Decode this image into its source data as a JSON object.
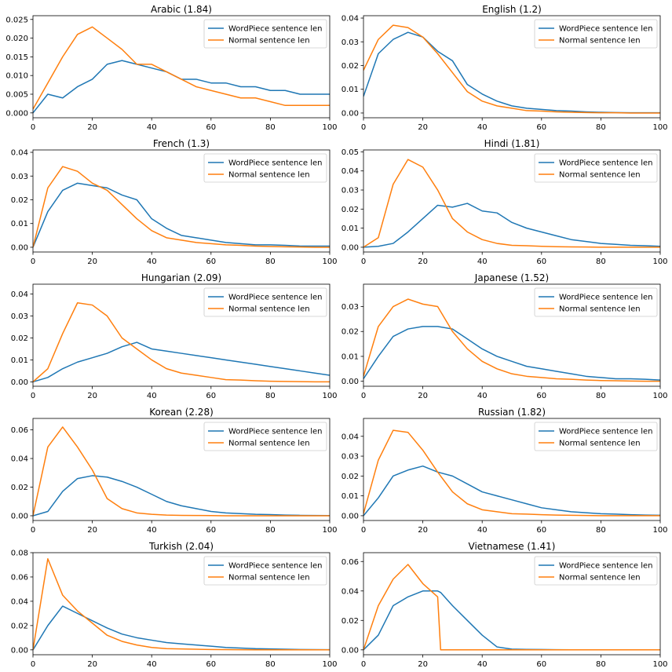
{
  "figure": {
    "legend_labels": [
      "WordPiece sentence len",
      "Normal sentence len"
    ],
    "colors": {
      "wordpiece": "#1f77b4",
      "normal": "#ff7f0e"
    }
  },
  "chart_data": [
    {
      "type": "line",
      "title": "Arabic (1.84)",
      "xlim": [
        0,
        100
      ],
      "ylim": [
        -0.0013,
        0.026
      ],
      "xticks": [
        0,
        20,
        40,
        60,
        80,
        100
      ],
      "yticks": [
        0.0,
        0.005,
        0.01,
        0.015,
        0.02,
        0.025
      ],
      "ytick_labels": [
        "0.000",
        "0.005",
        "0.010",
        "0.015",
        "0.020",
        "0.025"
      ],
      "legend": "top-right",
      "x": [
        0,
        5,
        10,
        15,
        20,
        25,
        30,
        35,
        40,
        45,
        50,
        55,
        60,
        65,
        70,
        75,
        80,
        85,
        90,
        95,
        100
      ],
      "series": [
        {
          "name": "WordPiece sentence len",
          "values": [
            0.0,
            0.005,
            0.004,
            0.007,
            0.009,
            0.013,
            0.014,
            0.013,
            0.012,
            0.011,
            0.009,
            0.009,
            0.008,
            0.008,
            0.007,
            0.007,
            0.006,
            0.006,
            0.005,
            0.005,
            0.005
          ]
        },
        {
          "name": "Normal sentence len",
          "values": [
            0.001,
            0.008,
            0.015,
            0.021,
            0.023,
            0.02,
            0.017,
            0.013,
            0.013,
            0.011,
            0.009,
            0.007,
            0.006,
            0.005,
            0.004,
            0.004,
            0.003,
            0.002,
            0.002,
            0.002,
            0.002
          ]
        }
      ]
    },
    {
      "type": "line",
      "title": "English (1.2)",
      "xlim": [
        0,
        100
      ],
      "ylim": [
        -0.002,
        0.041
      ],
      "xticks": [
        0,
        20,
        40,
        60,
        80,
        100
      ],
      "yticks": [
        0.0,
        0.01,
        0.02,
        0.03,
        0.04
      ],
      "ytick_labels": [
        "0.00",
        "0.01",
        "0.02",
        "0.03",
        "0.04"
      ],
      "legend": "top-right",
      "x": [
        0,
        5,
        10,
        15,
        20,
        25,
        30,
        35,
        40,
        45,
        50,
        55,
        60,
        65,
        70,
        75,
        80,
        85,
        90,
        95,
        100
      ],
      "series": [
        {
          "name": "WordPiece sentence len",
          "values": [
            0.007,
            0.025,
            0.031,
            0.034,
            0.032,
            0.026,
            0.022,
            0.012,
            0.008,
            0.005,
            0.003,
            0.002,
            0.0015,
            0.001,
            0.0008,
            0.0005,
            0.0003,
            0.0002,
            0.0001,
            0.0001,
            0.0001
          ]
        },
        {
          "name": "Normal sentence len",
          "values": [
            0.018,
            0.031,
            0.037,
            0.036,
            0.032,
            0.025,
            0.017,
            0.009,
            0.005,
            0.003,
            0.002,
            0.001,
            0.0008,
            0.0005,
            0.0003,
            0.0002,
            0.0001,
            0.0001,
            0.0,
            0.0,
            0.0
          ]
        }
      ]
    },
    {
      "type": "line",
      "title": "French (1.3)",
      "xlim": [
        0,
        100
      ],
      "ylim": [
        -0.002,
        0.041
      ],
      "xticks": [
        0,
        20,
        40,
        60,
        80,
        100
      ],
      "yticks": [
        0.0,
        0.01,
        0.02,
        0.03,
        0.04
      ],
      "ytick_labels": [
        "0.00",
        "0.01",
        "0.02",
        "0.03",
        "0.04"
      ],
      "legend": "top-right",
      "x": [
        0,
        5,
        10,
        15,
        20,
        25,
        30,
        35,
        40,
        45,
        50,
        55,
        60,
        65,
        70,
        75,
        80,
        85,
        90,
        95,
        100
      ],
      "series": [
        {
          "name": "WordPiece sentence len",
          "values": [
            0.0,
            0.015,
            0.024,
            0.027,
            0.026,
            0.025,
            0.022,
            0.02,
            0.012,
            0.008,
            0.005,
            0.004,
            0.003,
            0.002,
            0.0015,
            0.001,
            0.001,
            0.0008,
            0.0005,
            0.0005,
            0.0005
          ]
        },
        {
          "name": "Normal sentence len",
          "values": [
            0.0,
            0.025,
            0.034,
            0.032,
            0.027,
            0.024,
            0.018,
            0.012,
            0.007,
            0.004,
            0.003,
            0.002,
            0.0015,
            0.001,
            0.0008,
            0.0005,
            0.0003,
            0.0002,
            0.0001,
            0.0,
            0.0
          ]
        }
      ]
    },
    {
      "type": "line",
      "title": "Hindi (1.81)",
      "xlim": [
        0,
        100
      ],
      "ylim": [
        -0.0025,
        0.051
      ],
      "xticks": [
        0,
        20,
        40,
        60,
        80,
        100
      ],
      "yticks": [
        0.0,
        0.01,
        0.02,
        0.03,
        0.04,
        0.05
      ],
      "ytick_labels": [
        "0.00",
        "0.01",
        "0.02",
        "0.03",
        "0.04",
        "0.05"
      ],
      "legend": "top-right",
      "x": [
        0,
        5,
        10,
        15,
        20,
        25,
        30,
        35,
        40,
        45,
        50,
        55,
        60,
        65,
        70,
        75,
        80,
        85,
        90,
        95,
        100
      ],
      "series": [
        {
          "name": "WordPiece sentence len",
          "values": [
            0.0,
            0.0005,
            0.002,
            0.008,
            0.015,
            0.022,
            0.021,
            0.023,
            0.019,
            0.018,
            0.013,
            0.01,
            0.008,
            0.006,
            0.004,
            0.003,
            0.002,
            0.0015,
            0.001,
            0.0008,
            0.0005
          ]
        },
        {
          "name": "Normal sentence len",
          "values": [
            0.0,
            0.005,
            0.033,
            0.046,
            0.042,
            0.03,
            0.015,
            0.008,
            0.004,
            0.002,
            0.001,
            0.0008,
            0.0005,
            0.0003,
            0.0002,
            0.0001,
            0.0,
            0.0,
            0.0,
            0.0,
            0.0
          ]
        }
      ]
    },
    {
      "type": "line",
      "title": "Hungarian (2.09)",
      "xlim": [
        0,
        100
      ],
      "ylim": [
        -0.002,
        0.0445
      ],
      "xticks": [
        0,
        20,
        40,
        60,
        80,
        100
      ],
      "yticks": [
        0.0,
        0.01,
        0.02,
        0.03,
        0.04
      ],
      "ytick_labels": [
        "0.00",
        "0.01",
        "0.02",
        "0.03",
        "0.04"
      ],
      "legend": "top-right",
      "x": [
        0,
        5,
        10,
        15,
        20,
        25,
        30,
        35,
        40,
        45,
        50,
        55,
        60,
        65,
        70,
        75,
        80,
        85,
        90,
        95,
        100
      ],
      "series": [
        {
          "name": "WordPiece sentence len",
          "values": [
            0.0,
            0.002,
            0.006,
            0.009,
            0.011,
            0.013,
            0.016,
            0.018,
            0.015,
            0.014,
            0.013,
            0.012,
            0.011,
            0.01,
            0.009,
            0.008,
            0.007,
            0.006,
            0.005,
            0.004,
            0.003
          ]
        },
        {
          "name": "Normal sentence len",
          "values": [
            0.0,
            0.006,
            0.022,
            0.036,
            0.035,
            0.03,
            0.02,
            0.015,
            0.01,
            0.006,
            0.004,
            0.003,
            0.002,
            0.001,
            0.0008,
            0.0005,
            0.0003,
            0.0002,
            0.0001,
            0.0,
            0.0
          ]
        }
      ]
    },
    {
      "type": "line",
      "title": "Japanese (1.52)",
      "xlim": [
        0,
        100
      ],
      "ylim": [
        -0.002,
        0.039
      ],
      "xticks": [
        0,
        20,
        40,
        60,
        80,
        100
      ],
      "yticks": [
        0.0,
        0.01,
        0.02,
        0.03
      ],
      "ytick_labels": [
        "0.00",
        "0.01",
        "0.02",
        "0.03"
      ],
      "legend": "top-right",
      "x": [
        0,
        5,
        10,
        15,
        20,
        25,
        30,
        35,
        40,
        45,
        50,
        55,
        60,
        65,
        70,
        75,
        80,
        85,
        90,
        95,
        100
      ],
      "series": [
        {
          "name": "WordPiece sentence len",
          "values": [
            0.001,
            0.01,
            0.018,
            0.021,
            0.022,
            0.022,
            0.021,
            0.017,
            0.013,
            0.01,
            0.008,
            0.006,
            0.005,
            0.004,
            0.003,
            0.002,
            0.0015,
            0.001,
            0.001,
            0.0008,
            0.0005
          ]
        },
        {
          "name": "Normal sentence len",
          "values": [
            0.002,
            0.022,
            0.03,
            0.033,
            0.031,
            0.03,
            0.02,
            0.013,
            0.008,
            0.005,
            0.003,
            0.002,
            0.0015,
            0.001,
            0.0008,
            0.0005,
            0.0003,
            0.0002,
            0.0001,
            0.0,
            0.0
          ]
        }
      ]
    },
    {
      "type": "line",
      "title": "Korean (2.28)",
      "xlim": [
        0,
        100
      ],
      "ylim": [
        -0.0033,
        0.068
      ],
      "xticks": [
        0,
        20,
        40,
        60,
        80,
        100
      ],
      "yticks": [
        0.0,
        0.02,
        0.04,
        0.06
      ],
      "ytick_labels": [
        "0.00",
        "0.02",
        "0.04",
        "0.06"
      ],
      "legend": "top-right",
      "x": [
        0,
        5,
        10,
        15,
        20,
        25,
        30,
        35,
        40,
        45,
        50,
        55,
        60,
        65,
        70,
        75,
        80,
        85,
        90,
        95,
        100
      ],
      "series": [
        {
          "name": "WordPiece sentence len",
          "values": [
            0.0,
            0.003,
            0.017,
            0.026,
            0.028,
            0.027,
            0.024,
            0.02,
            0.015,
            0.01,
            0.007,
            0.005,
            0.003,
            0.002,
            0.0015,
            0.001,
            0.0008,
            0.0005,
            0.0003,
            0.0002,
            0.0001
          ]
        },
        {
          "name": "Normal sentence len",
          "values": [
            0.0,
            0.048,
            0.062,
            0.048,
            0.032,
            0.012,
            0.005,
            0.002,
            0.001,
            0.0005,
            0.0003,
            0.0002,
            0.0001,
            0.0,
            0.0,
            0.0,
            0.0,
            0.0,
            0.0,
            0.0,
            0.0
          ]
        }
      ]
    },
    {
      "type": "line",
      "title": "Russian (1.82)",
      "xlim": [
        0,
        100
      ],
      "ylim": [
        -0.0024,
        0.049
      ],
      "xticks": [
        0,
        20,
        40,
        60,
        80,
        100
      ],
      "yticks": [
        0.0,
        0.01,
        0.02,
        0.03,
        0.04
      ],
      "ytick_labels": [
        "0.00",
        "0.01",
        "0.02",
        "0.03",
        "0.04"
      ],
      "legend": "top-right",
      "x": [
        0,
        5,
        10,
        15,
        20,
        25,
        30,
        35,
        40,
        45,
        50,
        55,
        60,
        65,
        70,
        75,
        80,
        85,
        90,
        95,
        100
      ],
      "series": [
        {
          "name": "WordPiece sentence len",
          "values": [
            0.0,
            0.009,
            0.02,
            0.023,
            0.025,
            0.022,
            0.02,
            0.016,
            0.012,
            0.01,
            0.008,
            0.006,
            0.004,
            0.003,
            0.002,
            0.0015,
            0.001,
            0.0008,
            0.0005,
            0.0003,
            0.0002
          ]
        },
        {
          "name": "Normal sentence len",
          "values": [
            0.001,
            0.028,
            0.043,
            0.042,
            0.033,
            0.022,
            0.012,
            0.006,
            0.003,
            0.002,
            0.001,
            0.0008,
            0.0005,
            0.0003,
            0.0002,
            0.0001,
            0.0,
            0.0,
            0.0,
            0.0,
            0.0
          ]
        }
      ]
    },
    {
      "type": "line",
      "title": "Turkish (2.04)",
      "xlim": [
        0,
        100
      ],
      "ylim": [
        -0.004,
        0.08
      ],
      "xticks": [
        0,
        20,
        40,
        60,
        80,
        100
      ],
      "yticks": [
        0.0,
        0.02,
        0.04,
        0.06,
        0.08
      ],
      "ytick_labels": [
        "0.00",
        "0.02",
        "0.04",
        "0.06",
        "0.08"
      ],
      "legend": "top-right",
      "x": [
        0,
        5,
        10,
        15,
        20,
        25,
        30,
        35,
        40,
        45,
        50,
        55,
        60,
        65,
        70,
        75,
        80,
        85,
        90,
        95,
        100
      ],
      "series": [
        {
          "name": "WordPiece sentence len",
          "values": [
            0.0,
            0.02,
            0.036,
            0.03,
            0.024,
            0.018,
            0.013,
            0.01,
            0.008,
            0.006,
            0.005,
            0.004,
            0.003,
            0.002,
            0.0015,
            0.001,
            0.0008,
            0.0005,
            0.0003,
            0.0002,
            0.0001
          ]
        },
        {
          "name": "Normal sentence len",
          "values": [
            0.0,
            0.075,
            0.045,
            0.032,
            0.022,
            0.012,
            0.007,
            0.004,
            0.002,
            0.001,
            0.0008,
            0.0005,
            0.0003,
            0.0002,
            0.0001,
            0.0,
            0.0,
            0.0,
            0.0,
            0.0,
            0.0
          ]
        }
      ]
    },
    {
      "type": "line",
      "title": "Vietnamese (1.41)",
      "xlim": [
        0,
        100
      ],
      "ylim": [
        -0.0033,
        0.066
      ],
      "xticks": [
        0,
        20,
        40,
        60,
        80,
        100
      ],
      "yticks": [
        0.0,
        0.02,
        0.04,
        0.06
      ],
      "ytick_labels": [
        "0.00",
        "0.02",
        "0.04",
        "0.06"
      ],
      "legend": "top-right",
      "x": [
        0,
        5,
        10,
        15,
        20,
        25,
        26,
        30,
        35,
        40,
        45,
        50,
        55,
        60,
        65,
        70,
        75,
        80,
        85,
        90,
        95,
        100
      ],
      "series": [
        {
          "name": "WordPiece sentence len",
          "values": [
            0.0,
            0.01,
            0.03,
            0.036,
            0.04,
            0.04,
            0.039,
            0.03,
            0.02,
            0.01,
            0.002,
            0.0005,
            0.0003,
            0.0002,
            0.0001,
            0.0,
            0.0,
            0.0,
            0.0,
            0.0,
            0.0,
            0.0
          ]
        },
        {
          "name": "Normal sentence len",
          "values": [
            0.0,
            0.03,
            0.048,
            0.058,
            0.045,
            0.036,
            0.0,
            0.0,
            0.0,
            0.0,
            0.0,
            0.0,
            0.0,
            0.0,
            0.0,
            0.0,
            0.0,
            0.0,
            0.0,
            0.0,
            0.0,
            0.0
          ]
        }
      ]
    }
  ]
}
